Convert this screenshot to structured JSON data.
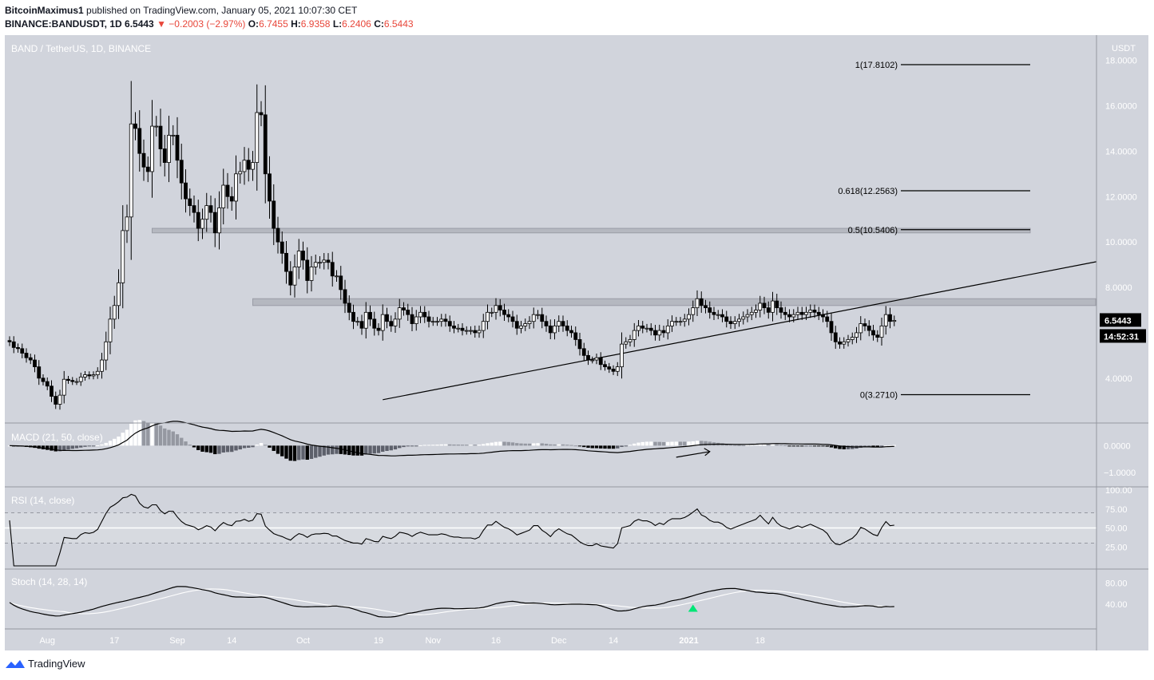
{
  "header": {
    "author": "BitcoinMaximus1",
    "published_text": "published on TradingView.com, January 05, 2021 10:07:30 CET",
    "symbol": "BINANCE:BANDUSDT, 1D",
    "last": "6.5443",
    "change_arrow": "▼",
    "change": "−0.2003 (−2.97%)",
    "o_label": "O:",
    "o": "6.7455",
    "h_label": "H:",
    "h": "6.9358",
    "l_label": "L:",
    "l": "6.2406",
    "c_label": "C:",
    "c": "6.5443"
  },
  "footer": {
    "brand": "TradingView",
    "logo_icon": "tradingview-logo-icon"
  },
  "colors": {
    "bg": "#d1d4dc",
    "ink": "#000000",
    "neg": "#e8473b",
    "zone": "#b2b5be",
    "green": "#00e676"
  },
  "chart_data": [
    {
      "type": "candlestick",
      "title": "BAND / TetherUS, 1D, BINANCE",
      "currency": "USDT",
      "ylim": [
        2.2,
        18.9
      ],
      "yticks": [
        "4.0000",
        "6.0000",
        "8.0000",
        "10.0000",
        "12.0000",
        "14.0000",
        "16.0000",
        "18.0000"
      ],
      "xticks": [
        "Aug",
        "17",
        "Sep",
        "14",
        "Oct",
        "19",
        "Nov",
        "16",
        "Dec",
        "14",
        "2021",
        "18"
      ],
      "date_range": [
        "2020-07-23",
        "2021-01-05"
      ],
      "price_label": "6.5443",
      "countdown_label": "14:52:31",
      "fib_levels": [
        {
          "label": "1(17.8102)",
          "value": 17.8102
        },
        {
          "label": "0.618(12.2563)",
          "value": 12.2563
        },
        {
          "label": "0.5(10.5406)",
          "value": 10.5406
        },
        {
          "label": "0(3.2710)",
          "value": 3.271
        }
      ],
      "zones": [
        {
          "low": 10.4,
          "high": 10.6
        },
        {
          "low": 7.2,
          "high": 7.5
        }
      ],
      "trendline": {
        "from": [
          "2020-10-20",
          3.05
        ],
        "to": [
          "2021-01-12",
          6.05
        ]
      },
      "closes": [
        5.6,
        5.35,
        5.3,
        5.1,
        4.9,
        4.8,
        4.5,
        4.0,
        3.85,
        3.65,
        3.2,
        2.85,
        3.25,
        3.95,
        3.9,
        3.85,
        3.85,
        4.05,
        4.15,
        4.1,
        4.15,
        4.3,
        4.8,
        5.6,
        6.6,
        7.2,
        8.2,
        10.5,
        11.1,
        15.2,
        15.0,
        13.9,
        13.3,
        13.1,
        15.1,
        15.1,
        14.1,
        13.5,
        14.7,
        14.7,
        13.6,
        12.6,
        11.9,
        11.6,
        11.3,
        10.6,
        11.0,
        11.6,
        11.3,
        10.4,
        11.5,
        12.5,
        12.0,
        11.8,
        13.0,
        13.1,
        13.6,
        13.2,
        13.5,
        15.7,
        15.6,
        13.0,
        11.8,
        10.6,
        10.0,
        9.5,
        8.7,
        8.1,
        8.9,
        9.6,
        9.2,
        8.3,
        8.9,
        9.1,
        9.1,
        9.2,
        9.1,
        8.5,
        8.5,
        7.9,
        7.3,
        6.9,
        6.5,
        6.5,
        6.2,
        6.9,
        6.6,
        6.2,
        6.1,
        6.8,
        6.5,
        6.3,
        6.6,
        7.1,
        7.0,
        6.8,
        6.4,
        6.7,
        6.9,
        6.7,
        6.5,
        6.5,
        6.5,
        6.6,
        6.5,
        6.3,
        6.2,
        6.2,
        6.1,
        6.1,
        6.1,
        6.0,
        6.1,
        6.5,
        6.9,
        6.9,
        7.2,
        7.0,
        6.8,
        6.7,
        6.5,
        6.2,
        6.3,
        6.4,
        6.5,
        6.8,
        6.8,
        6.5,
        6.3,
        6.0,
        6.3,
        6.5,
        6.3,
        6.1,
        6.0,
        5.7,
        5.3,
        5.0,
        4.8,
        4.8,
        4.9,
        4.6,
        4.5,
        4.4,
        4.3,
        4.5,
        5.5,
        5.6,
        5.7,
        6.1,
        6.3,
        6.2,
        6.2,
        6.1,
        5.9,
        6.1,
        6.0,
        6.3,
        6.5,
        6.5,
        6.5,
        6.6,
        6.8,
        7.1,
        7.5,
        7.2,
        7.1,
        6.9,
        6.8,
        6.8,
        6.7,
        6.5,
        6.4,
        6.5,
        6.6,
        6.7,
        6.8,
        6.9,
        7.0,
        7.3,
        7.1,
        6.9,
        7.4,
        7.1,
        6.9,
        6.8,
        6.7,
        6.8,
        6.9,
        6.8,
        6.9,
        7.0,
        6.9,
        6.8,
        6.7,
        6.5,
        6.0,
        5.6,
        5.5,
        5.6,
        5.7,
        5.8,
        6.0,
        6.4,
        6.3,
        6.1,
        5.9,
        5.8,
        6.3,
        6.8,
        6.5,
        6.5443
      ]
    },
    {
      "type": "macd",
      "label": "MACD (21, 50, close)",
      "yticks": [
        "0.0000",
        "−1.0000"
      ],
      "ylim": [
        -1.35,
        0.72
      ],
      "signal_start_value": 0.7,
      "arrow": {
        "from": [
          "2020-12-29",
          -0.43
        ],
        "to": [
          "2021-01-06",
          -0.22
        ]
      }
    },
    {
      "type": "rsi",
      "label": "RSI (14, close)",
      "yticks": [
        "100.00",
        "75.00",
        "50.00",
        "25.00"
      ],
      "ylim": [
        0,
        100
      ],
      "bands": [
        70,
        50,
        30
      ]
    },
    {
      "type": "stoch",
      "label": "Stoch (14, 28, 14)",
      "yticks": [
        "80.00",
        "40.00"
      ],
      "ylim": [
        0,
        100
      ],
      "signal_marker": {
        "date": "2021-01-02",
        "value": 32
      }
    }
  ]
}
